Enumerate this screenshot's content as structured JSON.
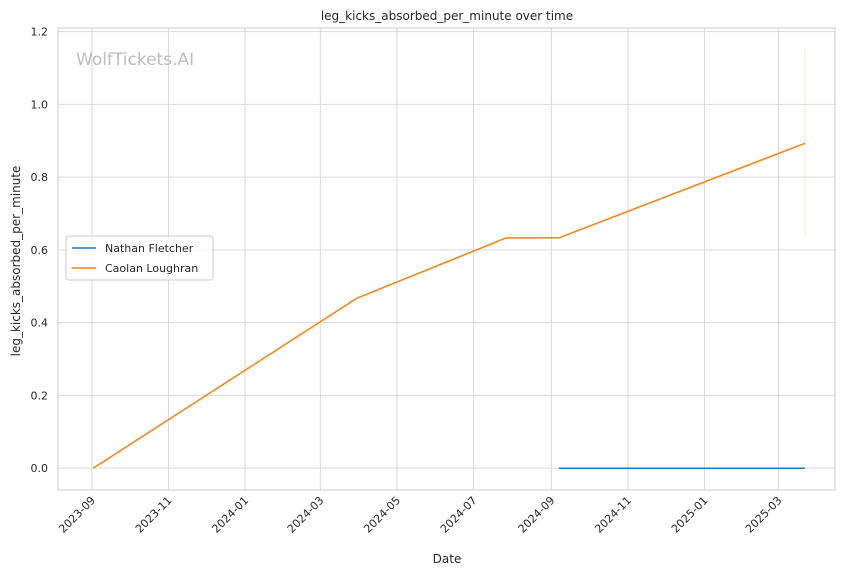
{
  "chart_data": {
    "type": "line",
    "title": "leg_kicks_absorbed_per_minute over time",
    "xlabel": "Date",
    "ylabel": "leg_kicks_absorbed_per_minute",
    "watermark": "WolfTickets.AI",
    "xlim": [
      "2023-08-05",
      "2025-04-15"
    ],
    "ylim": [
      -0.06,
      1.21
    ],
    "x_ticks": [
      "2023-09",
      "2023-11",
      "2024-01",
      "2024-03",
      "2024-05",
      "2024-07",
      "2024-09",
      "2024-11",
      "2025-01",
      "2025-03"
    ],
    "y_ticks": [
      "0.0",
      "0.2",
      "0.4",
      "0.6",
      "0.8",
      "1.0",
      "1.2"
    ],
    "grid": true,
    "legend_position": "center-left",
    "series": [
      {
        "name": "Nathan Fletcher",
        "color": "#1f77b4",
        "points": [
          {
            "x": "2024-09-07",
            "y": 0.0
          },
          {
            "x": "2025-03-22",
            "y": 0.0
          }
        ]
      },
      {
        "name": "Caolan Loughran",
        "color": "#ff7f0e",
        "points": [
          {
            "x": "2023-09-02",
            "y": 0.0
          },
          {
            "x": "2024-03-30",
            "y": 0.467
          },
          {
            "x": "2024-07-27",
            "y": 0.633
          },
          {
            "x": "2024-09-07",
            "y": 0.633
          },
          {
            "x": "2025-03-22",
            "y": 0.893
          }
        ]
      }
    ],
    "band": {
      "x": "2025-03-22",
      "y_range": [
        0.633,
        1.153
      ],
      "color": "#ff7f0e"
    }
  }
}
